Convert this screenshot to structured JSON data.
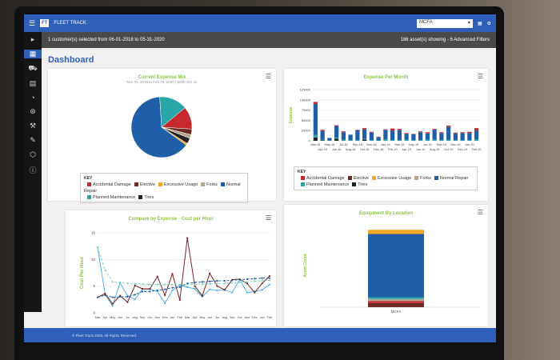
{
  "app": {
    "name": "FLEET TRACK",
    "logo": "FT",
    "customer_select": "MCFA",
    "footer": "© Fleet Track 2020. All Rights Reserved."
  },
  "filter_bar": {
    "summary": "1 customer(s) selected from 06-01-2018 to 05-31-2020",
    "assets": "186 asset(s) showing - 6 Advanced Filters"
  },
  "page_title": "Dashboard",
  "colors": {
    "Accidental Damage": "#c62a2f",
    "Elective": "#6b2a22",
    "Excessive Usage": "#f5a623",
    "Forks": "#b5a590",
    "Normal Repair": "#1f5fa8",
    "Planned Maintenance": "#2aa6a8",
    "Tires": "#222222"
  },
  "legend": {
    "key": "KEY",
    "items": [
      "Accidental Damage",
      "Elective",
      "Excessive Usage",
      "Forks",
      "Normal Repair",
      "Planned Maintenance",
      "Tires"
    ]
  },
  "chart_data": [
    {
      "type": "pie",
      "title": "Current Expense Mix",
      "subtitle": "Mar 01, 2018 to Feb 29, 2020 | $965,421.31",
      "slices": [
        {
          "name": "Normal Repair",
          "value": 64
        },
        {
          "name": "Planned Maintenance",
          "value": 15
        },
        {
          "name": "Accidental Damage",
          "value": 12
        },
        {
          "name": "Elective",
          "value": 3
        },
        {
          "name": "Forks",
          "value": 2
        },
        {
          "name": "Tires",
          "value": 3
        },
        {
          "name": "Excessive Usage",
          "value": 1
        }
      ]
    },
    {
      "type": "bar",
      "stacked": true,
      "title": "Expense Per Month",
      "ylabel": "Expense",
      "ylim": [
        0,
        125000
      ],
      "yticks": [
        0,
        25000,
        50000,
        75000,
        100000,
        125000
      ],
      "categories": [
        "Mar-18",
        "Apr-18",
        "May-18",
        "Jun-18",
        "Jul-18",
        "Aug-18",
        "Sep-18",
        "Oct-18",
        "Nov-18",
        "Dec-18",
        "Jan-19",
        "Feb-19",
        "Mar-19",
        "Apr-19",
        "May-19",
        "Jun-19",
        "Jul-19",
        "Aug-19",
        "Sep-19",
        "Oct-19",
        "Nov-19",
        "Dec-19",
        "Jan-20",
        "Feb-20"
      ],
      "series": [
        {
          "name": "Tires",
          "values": [
            8000,
            1000,
            0,
            5000,
            0,
            0,
            0,
            3000,
            0,
            0,
            0,
            0,
            0,
            0,
            0,
            0,
            0,
            0,
            0,
            0,
            0,
            0,
            0,
            0
          ]
        },
        {
          "name": "Planned Maintenance",
          "values": [
            6000,
            2000,
            1000,
            3000,
            3000,
            2000,
            2000,
            2000,
            2000,
            1000,
            4000,
            2000,
            2000,
            3000,
            2000,
            2000,
            3000,
            3000,
            2000,
            3000,
            2000,
            2000,
            2000,
            4000
          ]
        },
        {
          "name": "Normal Repair",
          "values": [
            76000,
            21000,
            6000,
            28000,
            18000,
            13000,
            24000,
            23000,
            18000,
            8000,
            23000,
            23000,
            24000,
            14000,
            14000,
            19000,
            15000,
            24000,
            17000,
            31000,
            16000,
            17000,
            17000,
            21000
          ]
        },
        {
          "name": "Accidental Damage",
          "values": [
            5000,
            3000,
            0,
            2000,
            2000,
            0,
            1000,
            3000,
            2000,
            1000,
            1000,
            5000,
            3000,
            2000,
            1000,
            2000,
            3000,
            2000,
            2000,
            3000,
            2000,
            2000,
            3000,
            6000
          ]
        }
      ]
    },
    {
      "type": "line",
      "title": "Compare by Expense - Cost per Hour",
      "ylabel": "Cost Per Hour",
      "ylim": [
        0,
        15
      ],
      "yticks": [
        0,
        5,
        10,
        15
      ],
      "categories": [
        "Mar",
        "Apr",
        "May",
        "Jun",
        "Jul",
        "Aug",
        "Sep",
        "Oct",
        "Nov",
        "Dec",
        "Jan",
        "Feb",
        "Mar",
        "Apr",
        "May",
        "Jun",
        "Jul",
        "Aug",
        "Sep",
        "Oct",
        "Nov",
        "Dec",
        "Jan",
        "Feb"
      ],
      "series": [
        {
          "style": "solid",
          "color": "#4fb0e8",
          "values": [
            12.3,
            3.5,
            1.3,
            5.6,
            3.2,
            2.5,
            4.5,
            4.4,
            4.0,
            1.8,
            4.2,
            5.2,
            4.8,
            4.5,
            3.0,
            4.4,
            4.2,
            4.3,
            3.8,
            6.3,
            3.8,
            4.0,
            4.3,
            5.3
          ]
        },
        {
          "style": "solid",
          "color": "#7a1f22",
          "values": [
            2.9,
            3.6,
            1.7,
            3.2,
            2.0,
            5.1,
            4.5,
            4.5,
            6.8,
            3.3,
            7.3,
            2.4,
            14.0,
            5.0,
            3.2,
            7.4,
            5.0,
            4.3,
            6.2,
            6.3,
            5.5,
            3.8,
            5.5,
            6.9
          ]
        },
        {
          "style": "dashed",
          "color": "#1f5fa8",
          "values": [
            2.9,
            3.3,
            2.9,
            3.0,
            3.0,
            3.4,
            4.0,
            4.0,
            4.2,
            4.4,
            4.7,
            4.8,
            5.5,
            5.7,
            5.8,
            5.9,
            6.0,
            6.0,
            6.1,
            6.2,
            6.3,
            6.4,
            6.5,
            6.5
          ]
        },
        {
          "style": "dashed",
          "color": "#7fd3c0",
          "values": [
            12.3,
            8.0,
            5.8,
            5.7,
            5.5,
            5.4,
            5.4,
            5.3,
            5.3,
            5.3,
            5.3,
            5.3,
            5.3,
            5.3,
            5.4,
            5.4,
            5.5,
            5.5,
            5.6,
            5.7,
            5.8,
            5.9,
            6.0,
            6.1
          ]
        }
      ]
    },
    {
      "type": "bar",
      "stacked": true,
      "title": "Equipment By Location",
      "ylabel": "Asset Count",
      "ylim": [
        0,
        200
      ],
      "categories": [
        "MCFA"
      ],
      "series": [
        {
          "name": "Elective",
          "values": [
            10
          ]
        },
        {
          "name": "Accidental Damage",
          "values": [
            5
          ]
        },
        {
          "name": "Forks",
          "values": [
            5
          ]
        },
        {
          "name": "Planned Maintenance",
          "values": [
            4
          ]
        },
        {
          "name": "Normal Repair",
          "values": [
            152
          ]
        },
        {
          "name": "Excessive Usage",
          "values": [
            10
          ]
        }
      ]
    }
  ]
}
